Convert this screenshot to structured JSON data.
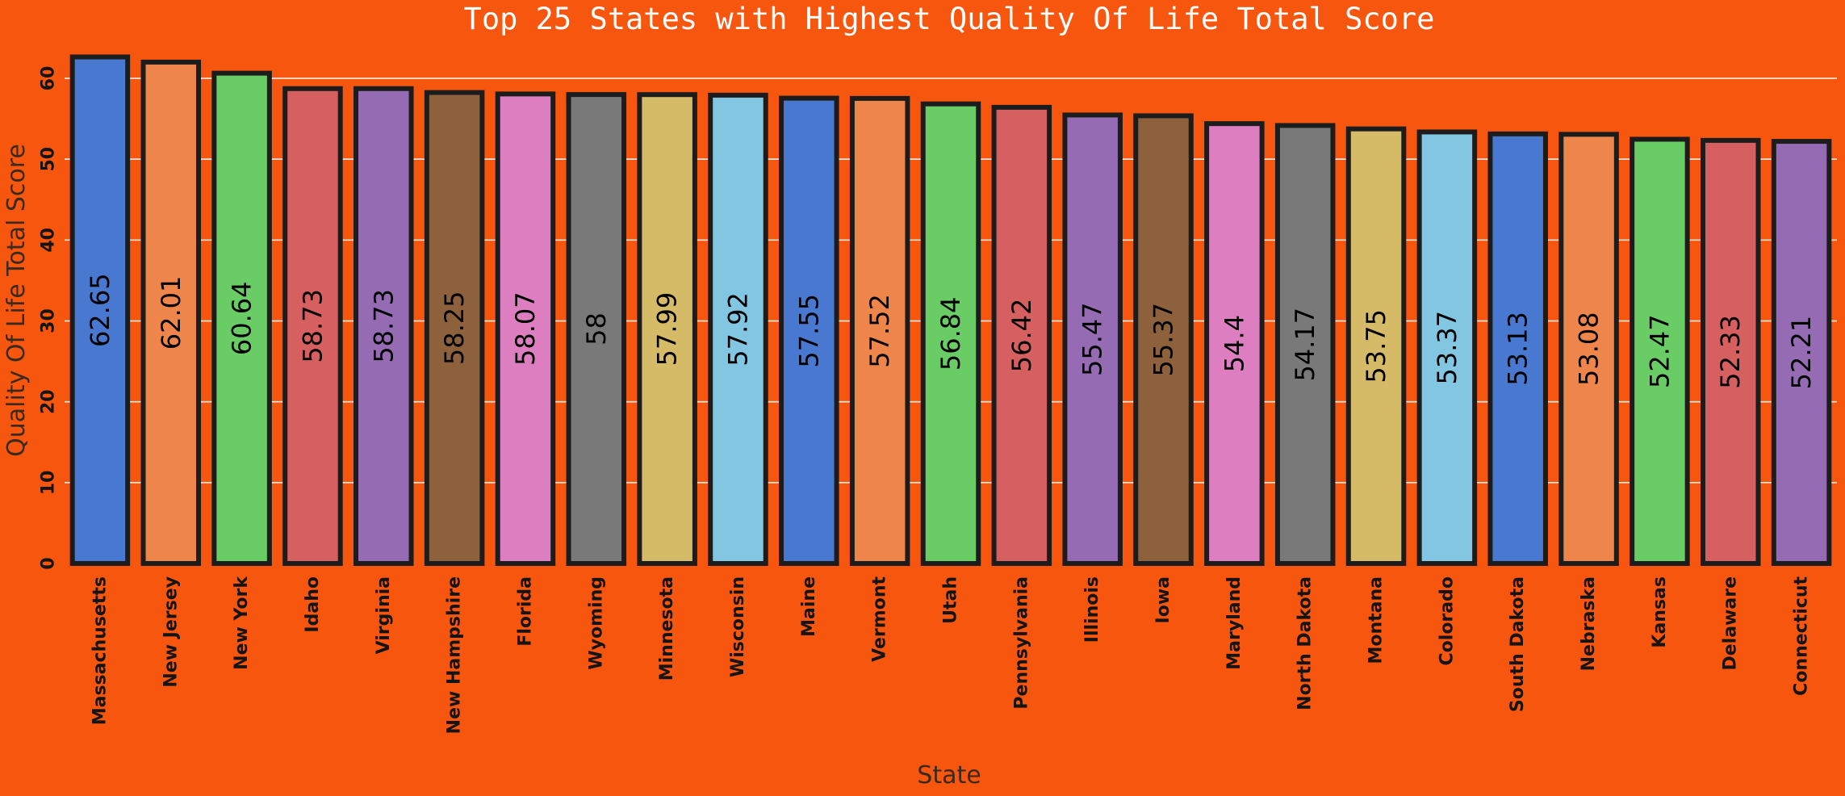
{
  "chart_data": {
    "type": "bar",
    "title": "Top 25 States with Highest Quality Of Life Total Score",
    "xlabel": "State",
    "ylabel": "Quality Of Life Total Score",
    "ylim": [
      0,
      63.5
    ],
    "yticks": [
      0,
      10,
      20,
      30,
      40,
      50,
      60
    ],
    "grid": true,
    "categories": [
      "Massachusetts",
      "New Jersey",
      "New York",
      "Idaho",
      "Virginia",
      "New Hampshire",
      "Florida",
      "Wyoming",
      "Minnesota",
      "Wisconsin",
      "Maine",
      "Vermont",
      "Utah",
      "Pennsylvania",
      "Illinois",
      "Iowa",
      "Maryland",
      "North Dakota",
      "Montana",
      "Colorado",
      "South Dakota",
      "Nebraska",
      "Kansas",
      "Delaware",
      "Connecticut"
    ],
    "values": [
      62.65,
      62.01,
      60.64,
      58.73,
      58.73,
      58.25,
      58.07,
      58,
      57.99,
      57.92,
      57.55,
      57.52,
      56.84,
      56.42,
      55.47,
      55.37,
      54.4,
      54.17,
      53.75,
      53.37,
      53.13,
      53.08,
      52.47,
      52.33,
      52.21
    ],
    "value_labels": [
      "62.65",
      "62.01",
      "60.64",
      "58.73",
      "58.73",
      "58.25",
      "58.07",
      "58",
      "57.99",
      "57.92",
      "57.55",
      "57.52",
      "56.84",
      "56.42",
      "55.47",
      "55.37",
      "54.4",
      "54.17",
      "53.75",
      "53.37",
      "53.13",
      "53.08",
      "52.47",
      "52.33",
      "52.21"
    ],
    "colors": [
      "#4878d0",
      "#ee854a",
      "#6acc64",
      "#d65f5f",
      "#956cb4",
      "#8c613c",
      "#dc7ec0",
      "#797979",
      "#d5bb67",
      "#82c6e2"
    ],
    "background": "#f7560f"
  }
}
